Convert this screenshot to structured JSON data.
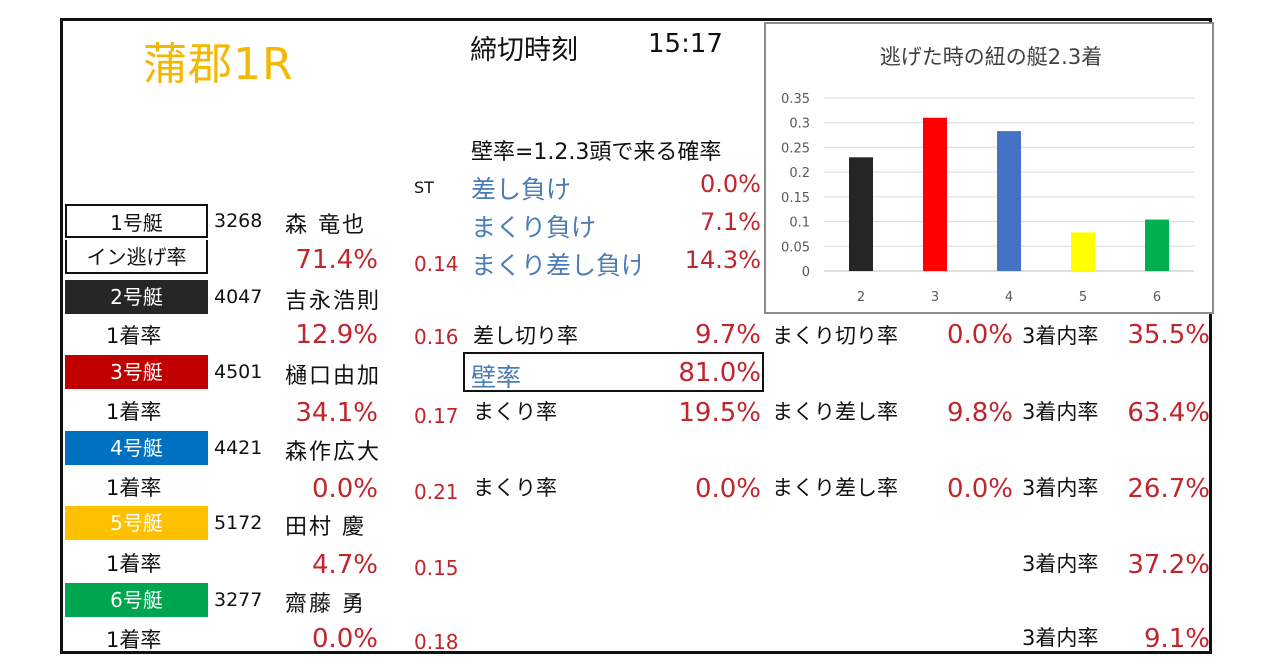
{
  "header": {
    "title": "蒲郡1R",
    "deadline_label": "締切時刻",
    "deadline_time": "15:17",
    "st_label": "ST"
  },
  "wall_section": {
    "definition": "壁率=1.2.3頭で来る確率",
    "sashi_make_label": "差し負け",
    "sashi_make_value": "0.0%",
    "makuri_make_label": "まくり負け",
    "makuri_make_value": "7.1%",
    "makuri_sashi_make_label": "まくり差し負け",
    "makuri_sashi_make_value": "14.3%"
  },
  "boats": [
    {
      "label": "1号艇",
      "color": "#ffffff",
      "text_color": "#111111",
      "reg": "3268",
      "name": "森  竜也",
      "rate_label": "イン逃げ率",
      "rate": "71.4%",
      "st": "0.14"
    },
    {
      "label": "2号艇",
      "color": "#262626",
      "text_color": "#ffffff",
      "reg": "4047",
      "name": "吉永浩則",
      "rate_label": "1着率",
      "rate": "12.9%",
      "st": "0.16"
    },
    {
      "label": "3号艇",
      "color": "#c00000",
      "text_color": "#ffffff",
      "reg": "4501",
      "name": "樋口由加",
      "rate_label": "1着率",
      "rate": "34.1%",
      "st": "0.17"
    },
    {
      "label": "4号艇",
      "color": "#0070c0",
      "text_color": "#ffffff",
      "reg": "4421",
      "name": "森作広大",
      "rate_label": "1着率",
      "rate": "0.0%",
      "st": "0.21"
    },
    {
      "label": "5号艇",
      "color": "#ffc000",
      "text_color": "#ffffff",
      "reg": "5172",
      "name": "田村  慶",
      "rate_label": "1着率",
      "rate": "4.7%",
      "st": "0.15"
    },
    {
      "label": "6号艇",
      "color": "#00a550",
      "text_color": "#ffffff",
      "reg": "3277",
      "name": "齋藤  勇",
      "rate_label": "1着率",
      "rate": "0.0%",
      "st": "0.18"
    }
  ],
  "row2": {
    "sashikiri_label": "差し切り率",
    "sashikiri_value": "9.7%",
    "makurikiri_label": "まくり切り率",
    "makurikiri_value": "0.0%",
    "top3_label": "3着内率",
    "top3_value": "35.5%"
  },
  "wall_rate": {
    "label": "壁率",
    "value": "81.0%"
  },
  "row3": {
    "makuri_label": "まくり率",
    "makuri_value": "19.5%",
    "makuri_sashi_label": "まくり差し率",
    "makuri_sashi_value": "9.8%",
    "top3_label": "3着内率",
    "top3_value": "63.4%"
  },
  "row4": {
    "makuri_label": "まくり率",
    "makuri_value": "0.0%",
    "makuri_sashi_label": "まくり差し率",
    "makuri_sashi_value": "0.0%",
    "top3_label": "3着内率",
    "top3_value": "26.7%"
  },
  "row5": {
    "top3_label": "3着内率",
    "top3_value": "37.2%"
  },
  "row6": {
    "top3_label": "3着内率",
    "top3_value": "9.1%"
  },
  "chart_data": {
    "type": "bar",
    "title": "逃げた時の紐の艇2.3着",
    "categories": [
      "2",
      "3",
      "4",
      "5",
      "6"
    ],
    "values": [
      0.23,
      0.31,
      0.283,
      0.078,
      0.104
    ],
    "colors": [
      "#262626",
      "#ff0000",
      "#4472c4",
      "#ffff00",
      "#00b050"
    ],
    "ylim": [
      0,
      0.35
    ],
    "yticks": [
      "0",
      "0.05",
      "0.1",
      "0.15",
      "0.2",
      "0.25",
      "0.3",
      "0.35"
    ],
    "grid": true,
    "xlabel": "",
    "ylabel": ""
  }
}
